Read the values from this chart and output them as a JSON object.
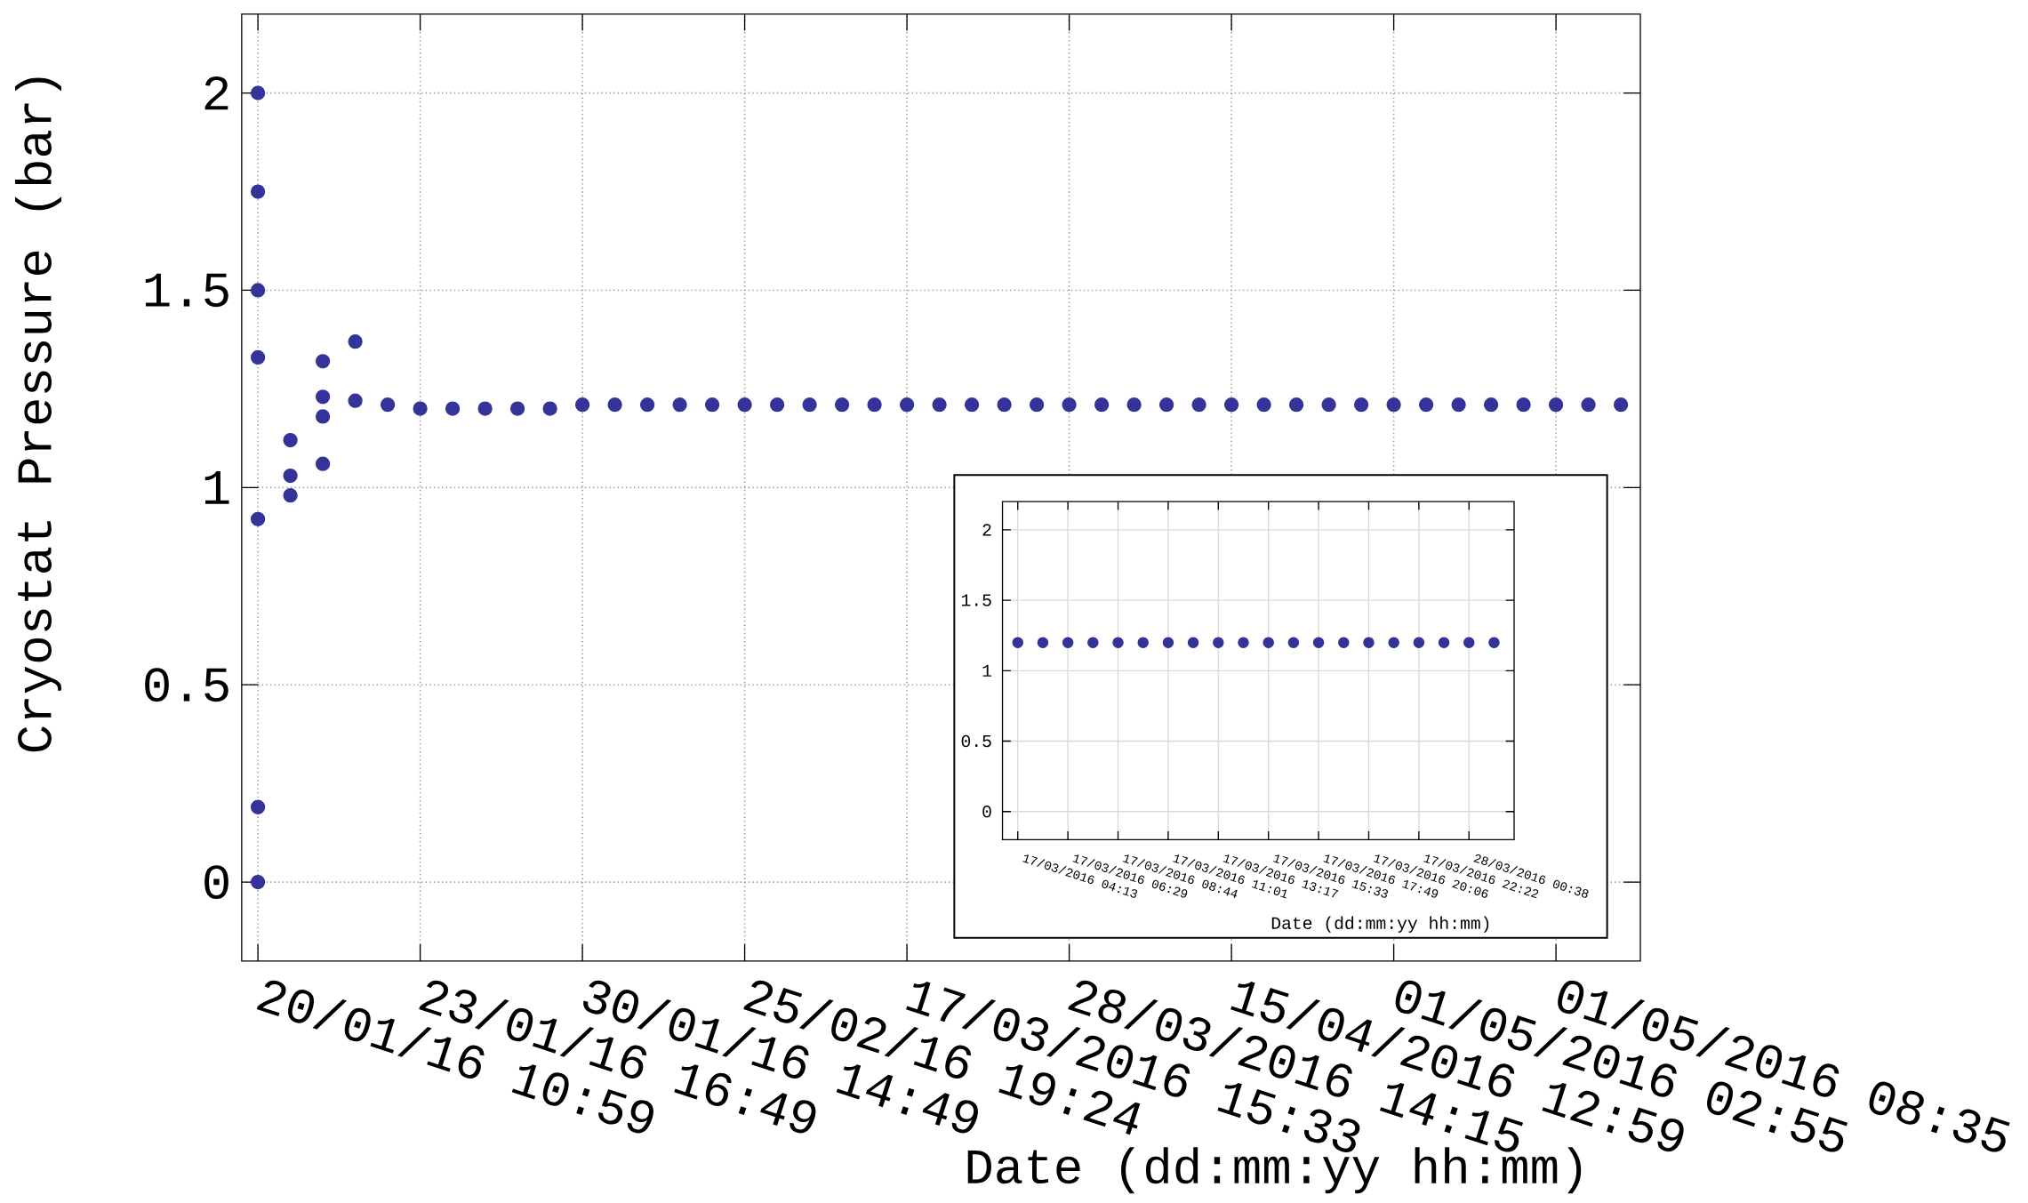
{
  "chart_data": [
    {
      "type": "scatter",
      "xlabel": "Date (dd:mm:yy hh:mm)",
      "ylabel": "Cryostat Pressure (bar)",
      "marker": "circle",
      "grid": true,
      "categories": [
        "20/01/16 10:59",
        null,
        null,
        null,
        null,
        "23/01/16 16:49",
        null,
        null,
        null,
        null,
        "30/01/16 14:49",
        null,
        null,
        null,
        null,
        "25/02/16 19:24",
        null,
        null,
        null,
        null,
        "17/03/2016 15:33",
        null,
        null,
        null,
        null,
        "28/03/2016 14:15",
        null,
        null,
        null,
        null,
        "15/04/2016 12:59",
        null,
        null,
        null,
        null,
        "01/05/2016 02:55",
        null,
        null,
        null,
        null,
        "01/05/2016 08:35",
        null,
        null
      ],
      "series": [
        {
          "color": "#333399",
          "values": [
            2.0,
            1.03,
            1.32,
            1.22,
            1.21,
            1.2,
            1.2,
            1.2,
            1.2,
            1.2,
            1.21,
            1.21,
            1.21,
            1.21,
            1.21,
            1.21,
            1.21,
            1.21,
            1.21,
            1.21,
            1.21,
            1.21,
            1.21,
            1.21,
            1.21,
            1.21,
            1.21,
            1.21,
            1.21,
            1.21,
            1.21,
            1.21,
            1.21,
            1.21,
            1.21,
            1.21,
            1.21,
            1.21,
            1.21,
            1.21,
            1.21,
            1.21,
            1.21
          ]
        },
        {
          "color": "#333399",
          "values": [
            1.75,
            1.12,
            1.23,
            1.37,
            null,
            null,
            null,
            null,
            null,
            null,
            null,
            null,
            null,
            null,
            null,
            null,
            null,
            null,
            null,
            null,
            null,
            null,
            null,
            null,
            null,
            null,
            null,
            null,
            null,
            null,
            null,
            null,
            null,
            null,
            null,
            null,
            null,
            null,
            null,
            null,
            null,
            null,
            null
          ]
        },
        {
          "color": "#333399",
          "values": [
            1.5,
            0.98,
            1.18,
            null,
            null,
            null,
            null,
            null,
            null,
            null,
            null,
            null,
            null,
            null,
            null,
            null,
            null,
            null,
            null,
            null,
            null,
            null,
            null,
            null,
            null,
            null,
            null,
            null,
            null,
            null,
            null,
            null,
            null,
            null,
            null,
            null,
            null,
            null,
            null,
            null,
            null,
            null,
            null
          ]
        },
        {
          "color": "#333399",
          "values": [
            1.33,
            null,
            1.06,
            null,
            null,
            null,
            null,
            null,
            null,
            null,
            null,
            null,
            null,
            null,
            null,
            null,
            null,
            null,
            null,
            null,
            null,
            null,
            null,
            null,
            null,
            null,
            null,
            null,
            null,
            null,
            null,
            null,
            null,
            null,
            null,
            null,
            null,
            null,
            null,
            null,
            null,
            null,
            null
          ]
        },
        {
          "color": "#333399",
          "values": [
            0.92,
            null,
            null,
            null,
            null,
            null,
            null,
            null,
            null,
            null,
            null,
            null,
            null,
            null,
            null,
            null,
            null,
            null,
            null,
            null,
            null,
            null,
            null,
            null,
            null,
            null,
            null,
            null,
            null,
            null,
            null,
            null,
            null,
            null,
            null,
            null,
            null,
            null,
            null,
            null,
            null,
            null,
            null
          ]
        },
        {
          "color": "#333399",
          "values": [
            0.19,
            null,
            null,
            null,
            null,
            null,
            null,
            null,
            null,
            null,
            null,
            null,
            null,
            null,
            null,
            null,
            null,
            null,
            null,
            null,
            null,
            null,
            null,
            null,
            null,
            null,
            null,
            null,
            null,
            null,
            null,
            null,
            null,
            null,
            null,
            null,
            null,
            null,
            null,
            null,
            null,
            null,
            null
          ]
        },
        {
          "color": "#333399",
          "values": [
            0,
            null,
            null,
            null,
            null,
            null,
            null,
            null,
            null,
            null,
            null,
            null,
            null,
            null,
            null,
            null,
            null,
            null,
            null,
            null,
            null,
            null,
            null,
            null,
            null,
            null,
            null,
            null,
            null,
            null,
            null,
            null,
            null,
            null,
            null,
            null,
            null,
            null,
            null,
            null,
            null,
            null,
            null
          ]
        }
      ],
      "ylim": [
        -0.2,
        2.2
      ],
      "yticks": [
        0,
        0.5,
        1,
        1.5,
        2
      ]
    },
    {
      "type": "scatter",
      "xlabel": "Date (dd:mm:yy hh:mm)",
      "marker": "circle",
      "grid": true,
      "categories": [
        "17/03/2016 04:13",
        null,
        "17/03/2016 06:29",
        null,
        "17/03/2016 08:44",
        null,
        "17/03/2016 11:01",
        null,
        "17/03/2016 13:17",
        null,
        "17/03/2016 15:33",
        null,
        "17/03/2016 17:49",
        null,
        "17/03/2016 20:06",
        null,
        "17/03/2016 22:22",
        null,
        "28/03/2016 00:38",
        null
      ],
      "series": [
        {
          "color": "#333399",
          "values": [
            1.2,
            1.2,
            1.2,
            1.2,
            1.2,
            1.2,
            1.2,
            1.2,
            1.2,
            1.2,
            1.2,
            1.2,
            1.2,
            1.2,
            1.2,
            1.2,
            1.2,
            1.2,
            1.2,
            1.2
          ]
        }
      ],
      "ylim": [
        -0.2,
        2.2
      ],
      "yticks": [
        0,
        0.5,
        1,
        1.5,
        2
      ]
    }
  ]
}
